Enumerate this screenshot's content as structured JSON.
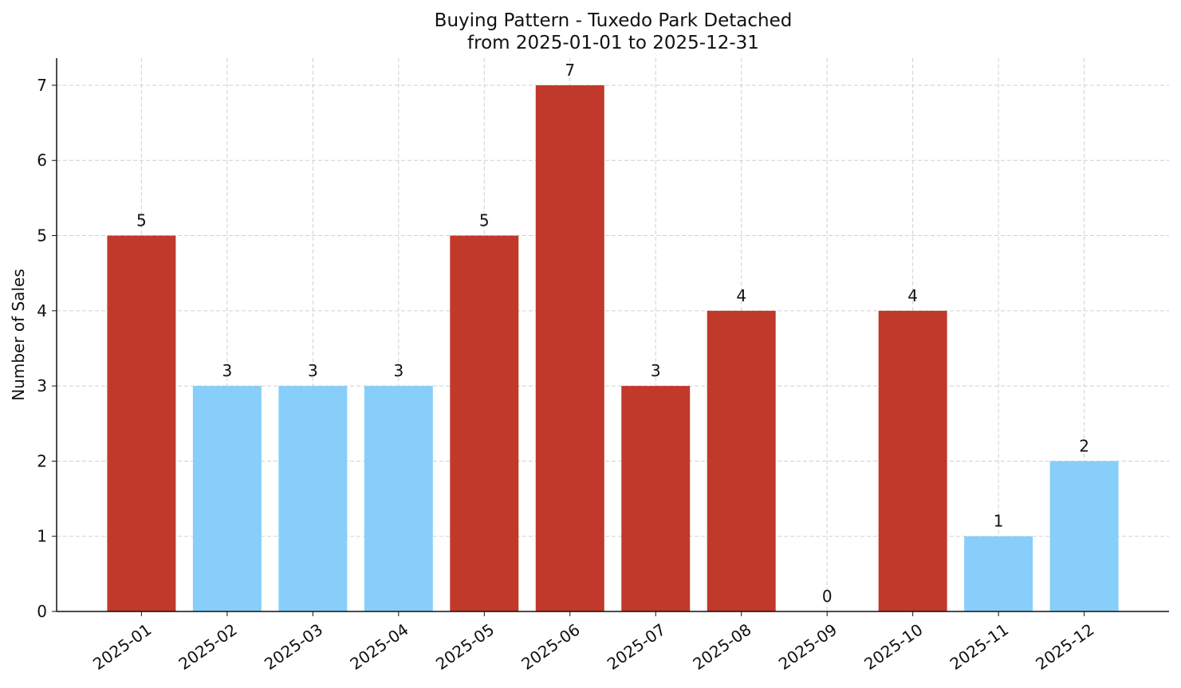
{
  "chart_data": {
    "type": "bar",
    "title": "Buying Pattern - Tuxedo Park Detached",
    "subtitle": "from 2025-01-01 to 2025-12-31",
    "y_label": "Number of Sales",
    "categories": [
      "2025-01",
      "2025-02",
      "2025-03",
      "2025-04",
      "2025-05",
      "2025-06",
      "2025-07",
      "2025-08",
      "2025-09",
      "2025-10",
      "2025-11",
      "2025-12"
    ],
    "values": [
      5,
      3,
      3,
      3,
      5,
      7,
      3,
      4,
      0,
      4,
      1,
      2
    ],
    "colors": [
      "#c0392b",
      "#87cefa",
      "#87cefa",
      "#87cefa",
      "#c0392b",
      "#c0392b",
      "#c0392b",
      "#c0392b",
      "#c0392b",
      "#c0392b",
      "#87cefa",
      "#87cefa"
    ],
    "ylim": [
      0,
      7.36
    ],
    "yticks": [
      0,
      1,
      2,
      3,
      4,
      5,
      6,
      7
    ],
    "grid": true
  }
}
